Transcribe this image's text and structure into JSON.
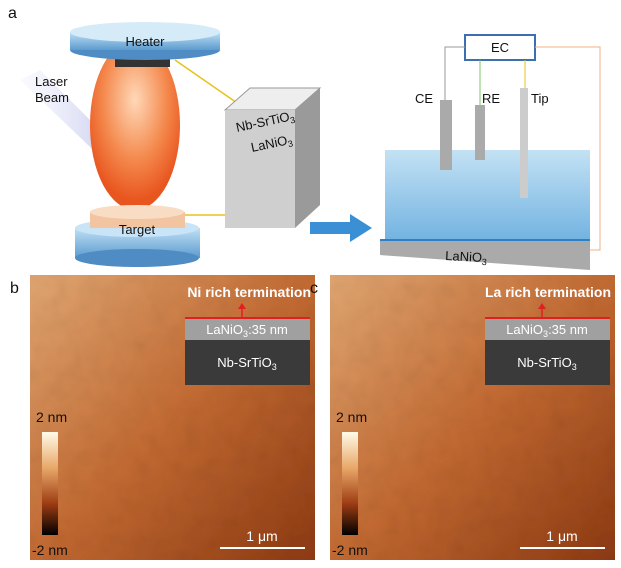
{
  "panel_a": {
    "label": "a",
    "heater": "Heater",
    "laser": [
      "Laser",
      "Beam"
    ],
    "target": "Target",
    "crystal": [
      {
        "main": "Nb-SrTiO",
        "sub": "3"
      },
      {
        "main": "LaNiO",
        "sub": "3"
      }
    ],
    "cell": {
      "controller": "EC",
      "electrodes": [
        "CE",
        "RE",
        "Tip"
      ],
      "substrate": {
        "main": "LaNiO",
        "sub": "3"
      }
    }
  },
  "panels": [
    {
      "label": "b",
      "title": "Ni rich termination",
      "film": {
        "main": "LaNiO",
        "sub": "3",
        "suffix": ":35 nm"
      },
      "substrate": {
        "main": "Nb-SrTiO",
        "sub": "3"
      },
      "colorbar": [
        "2 nm",
        "-2 nm"
      ],
      "scale_bar": "1 μm"
    },
    {
      "label": "c",
      "title": "La rich termination",
      "film": {
        "main": "LaNiO",
        "sub": "3",
        "suffix": ":35 nm"
      },
      "substrate": {
        "main": "Nb-SrTiO",
        "sub": "3"
      },
      "colorbar": [
        "2 nm",
        "-2 nm"
      ],
      "scale_bar": "1 μm"
    }
  ]
}
